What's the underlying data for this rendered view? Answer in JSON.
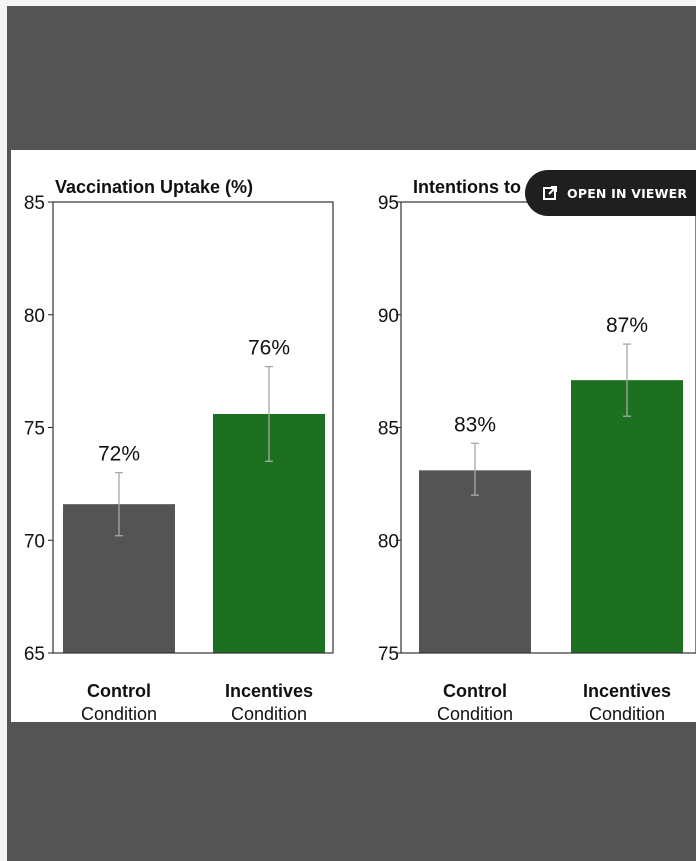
{
  "viewer_button": {
    "label": "OPEN IN VIEWER",
    "icon": "external-link-icon"
  },
  "chart_data": [
    {
      "type": "bar",
      "title": "Vaccination Uptake (%)",
      "categories": [
        {
          "main": "Control",
          "sub": "Condition"
        },
        {
          "main": "Incentives",
          "sub": "Condition"
        }
      ],
      "values": [
        71.6,
        75.6
      ],
      "value_labels": [
        "72%",
        "76%"
      ],
      "error_bars": [
        [
          70.2,
          73.0
        ],
        [
          73.5,
          77.7
        ]
      ],
      "colors": [
        "#545454",
        "#1c7020"
      ],
      "ylim": [
        65,
        85
      ],
      "yticks": [
        65,
        70,
        75,
        80,
        85
      ],
      "grid": false
    },
    {
      "type": "bar",
      "title": "Intentions to",
      "categories": [
        {
          "main": "Control",
          "sub": "Condition"
        },
        {
          "main": "Incentives",
          "sub": "Condition"
        }
      ],
      "values": [
        83.1,
        87.1
      ],
      "value_labels": [
        "83%",
        "87%"
      ],
      "error_bars": [
        [
          82.0,
          84.3
        ],
        [
          85.5,
          88.7
        ]
      ],
      "colors": [
        "#545454",
        "#1c7020"
      ],
      "ylim": [
        75,
        95
      ],
      "yticks": [
        75,
        80,
        85,
        90,
        95
      ],
      "grid": false
    }
  ]
}
